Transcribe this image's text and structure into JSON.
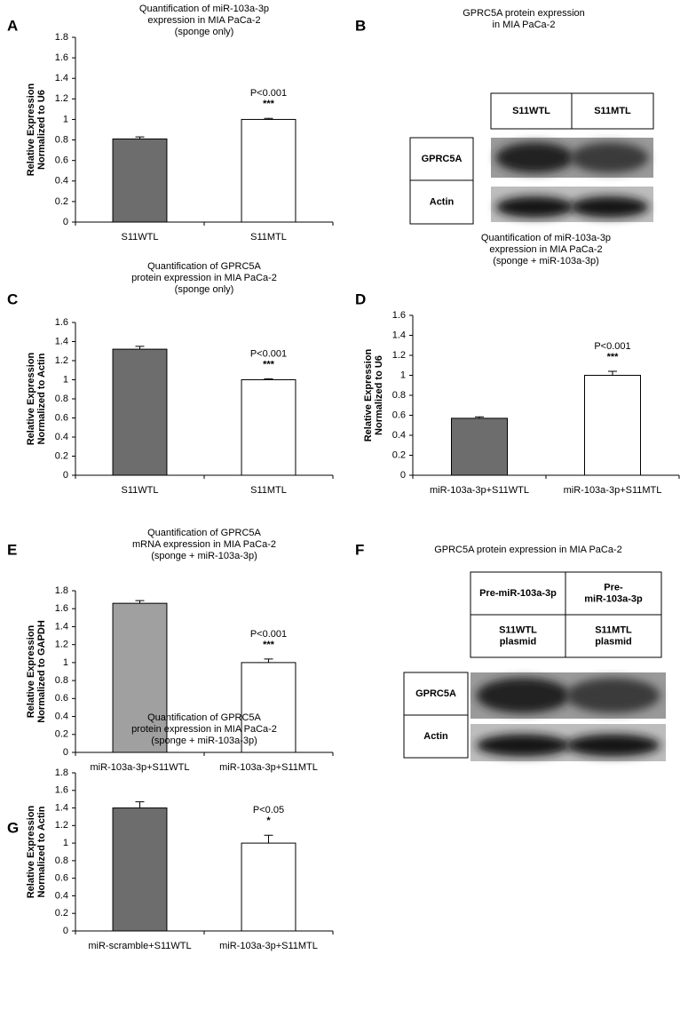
{
  "chart_data": [
    {
      "type": "bar",
      "panel": "A",
      "title": [
        "Quantification of miR-103a-3p",
        "expression in MIA PaCa-2",
        "(sponge only)"
      ],
      "ylabel": [
        "Relative Expression",
        "Normalized to U6"
      ],
      "categories": [
        "S11WTL",
        "S11MTL"
      ],
      "values": [
        0.81,
        1
      ],
      "errors": [
        0.02,
        0.01
      ],
      "colors": [
        "#6d6d6d",
        "#ffffff"
      ],
      "annotation": [
        "P<0.001",
        "***"
      ],
      "ylim": [
        0,
        1.8
      ],
      "yticks": [
        0,
        0.2,
        0.4,
        0.6,
        0.8,
        1,
        1.2,
        1.4,
        1.6,
        1.8
      ]
    },
    {
      "type": "bar",
      "panel": "C",
      "title": [
        "Quantification of GPRC5A",
        "protein expression in MIA PaCa-2",
        "(sponge only)"
      ],
      "ylabel": [
        "Relative Expression",
        "Normalized to Actin"
      ],
      "categories": [
        "S11WTL",
        "S11MTL"
      ],
      "values": [
        1.32,
        1
      ],
      "errors": [
        0.03,
        0.01
      ],
      "colors": [
        "#6d6d6d",
        "#ffffff"
      ],
      "annotation": [
        "P<0.001",
        "***"
      ],
      "ylim": [
        0,
        1.6
      ],
      "yticks": [
        0,
        0.2,
        0.4,
        0.6,
        0.8,
        1,
        1.2,
        1.4,
        1.6
      ]
    },
    {
      "type": "bar",
      "panel": "D",
      "title": [
        "Quantification of miR-103a-3p",
        "expression in MIA PaCa-2",
        "(sponge + miR-103a-3p)"
      ],
      "ylabel": [
        "Relative Expression",
        "Normalized to U6"
      ],
      "categories": [
        "miR-103a-3p+S11WTL",
        "miR-103a-3p+S11MTL"
      ],
      "values": [
        0.57,
        1
      ],
      "errors": [
        0.015,
        0.04
      ],
      "colors": [
        "#6d6d6d",
        "#ffffff"
      ],
      "annotation": [
        "P<0.001",
        "***"
      ],
      "ylim": [
        0,
        1.6
      ],
      "yticks": [
        0,
        0.2,
        0.4,
        0.6,
        0.8,
        1,
        1.2,
        1.4,
        1.6
      ]
    },
    {
      "type": "bar",
      "panel": "E",
      "title": [
        "Quantification of GPRC5A",
        "mRNA expression in MIA PaCa-2",
        "(sponge + miR-103a-3p)"
      ],
      "ylabel": [
        "Relative Expression",
        "Normalized to GAPDH"
      ],
      "categories": [
        "miR-103a-3p+S11WTL",
        "miR-103a-3p+S11MTL"
      ],
      "values": [
        1.66,
        1
      ],
      "errors": [
        0.03,
        0.04
      ],
      "colors": [
        "#a0a0a0",
        "#ffffff"
      ],
      "annotation": [
        "P<0.001",
        "***"
      ],
      "ylim": [
        0,
        1.8
      ],
      "yticks": [
        0,
        0.2,
        0.4,
        0.6,
        0.8,
        1,
        1.2,
        1.4,
        1.6,
        1.8
      ]
    },
    {
      "type": "bar",
      "panel": "G",
      "title": [
        "Quantification of GPRC5A",
        "protein expression in MIA PaCa-2",
        "(sponge + miR-103a-3p)"
      ],
      "ylabel": [
        "Relative Expression",
        "Normalized to Actin"
      ],
      "categories": [
        "miR-scramble+S11WTL",
        "miR-103a-3p+S11MTL"
      ],
      "values": [
        1.4,
        1
      ],
      "errors": [
        0.07,
        0.09
      ],
      "colors": [
        "#6d6d6d",
        "#ffffff"
      ],
      "annotation": [
        "P<0.05",
        "*"
      ],
      "ylim": [
        0,
        1.8
      ],
      "yticks": [
        0,
        0.2,
        0.4,
        0.6,
        0.8,
        1,
        1.2,
        1.4,
        1.6,
        1.8
      ]
    }
  ],
  "blots": [
    {
      "panel": "B",
      "title": [
        "GPRC5A protein expression",
        "in MIA PaCa-2"
      ],
      "headers": [
        [
          [
            "S11WTL"
          ],
          [
            "S11MTL"
          ]
        ]
      ],
      "rows": [
        "GPRC5A",
        "Actin"
      ]
    },
    {
      "panel": "F",
      "title": [
        "GPRC5A protein expression in MIA PaCa-2"
      ],
      "headers": [
        [
          [
            "Pre-miR-103a-3p"
          ],
          [
            "Pre-",
            "miR-103a-3p"
          ]
        ],
        [
          [
            "S11WTL",
            "plasmid"
          ],
          [
            "S11MTL",
            "plasmid"
          ]
        ]
      ],
      "rows": [
        "GPRC5A",
        "Actin"
      ]
    }
  ]
}
